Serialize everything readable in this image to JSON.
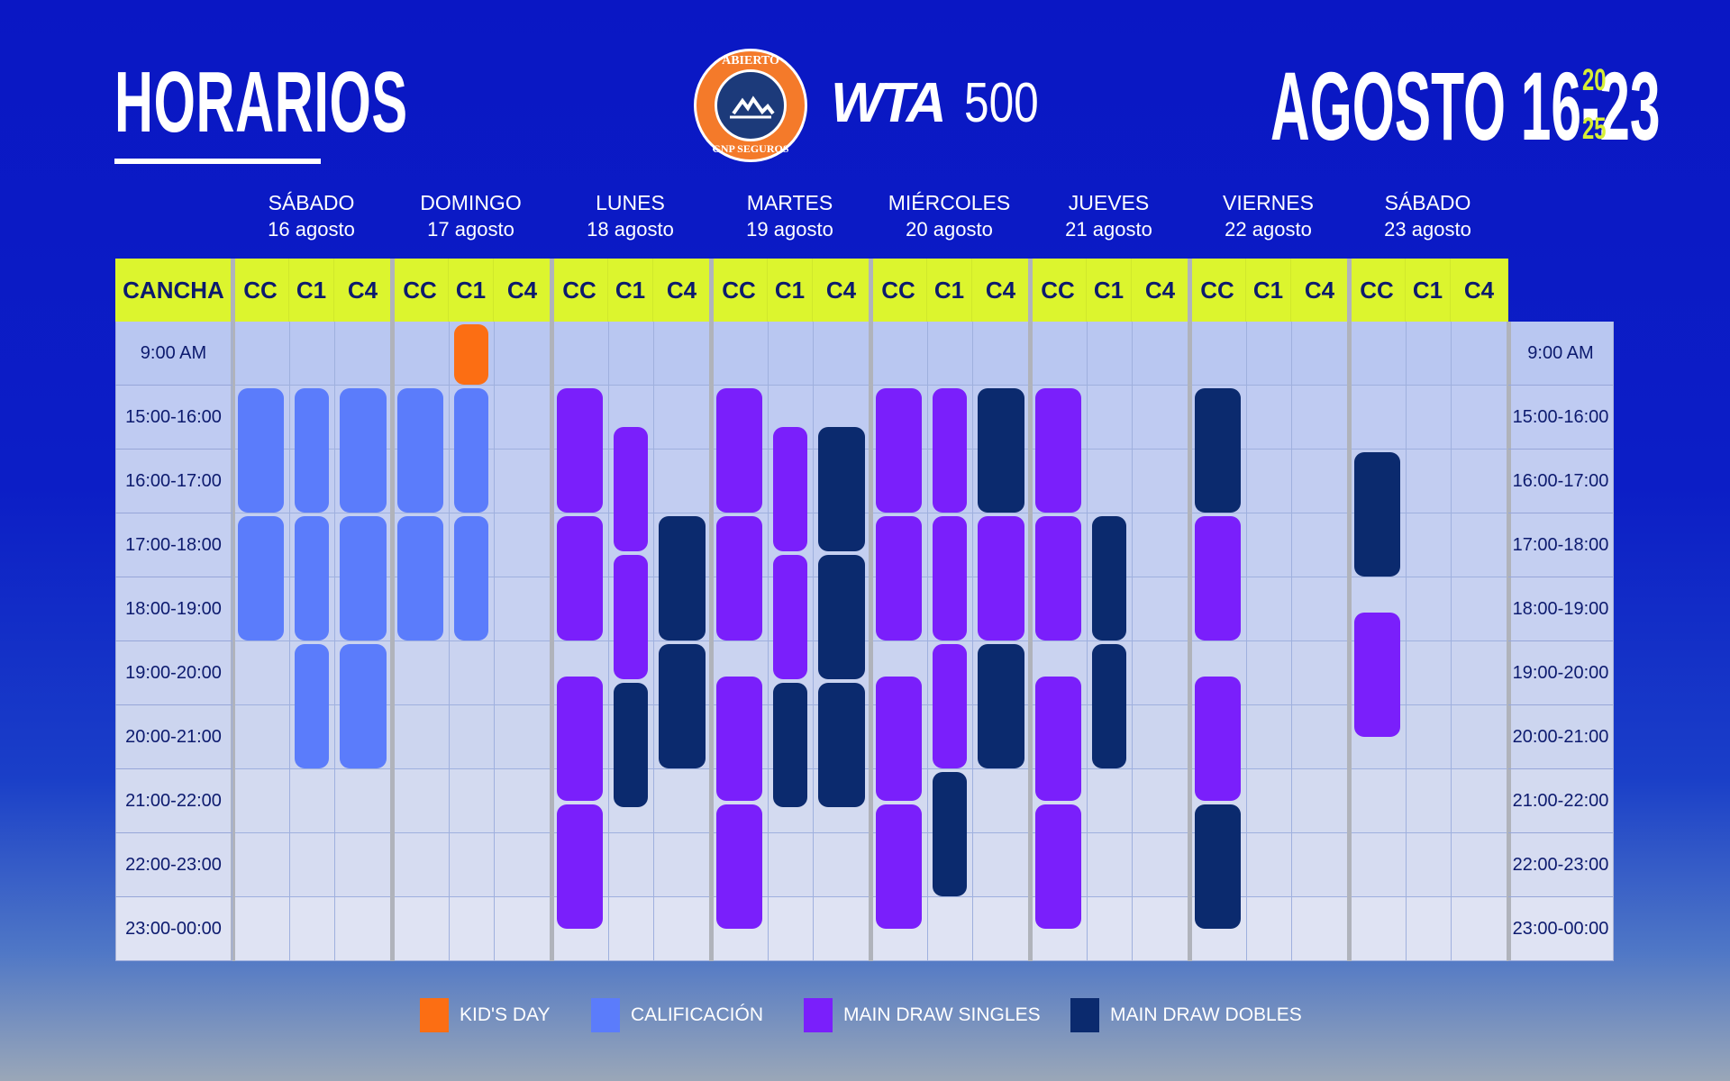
{
  "header": {
    "title": "HORARIOS",
    "logo_top": "ABIERTO",
    "logo_bottom": "GNP SEGUROS",
    "wta": "WTA",
    "tier": "500",
    "dates": "AGOSTO 16-23",
    "year_top": "20",
    "year_bottom": "25"
  },
  "court_label": "CANCHA",
  "courts": [
    "CC",
    "C1",
    "C4"
  ],
  "days": [
    {
      "name": "SÁBADO",
      "date": "16 agosto"
    },
    {
      "name": "DOMINGO",
      "date": "17 agosto"
    },
    {
      "name": "LUNES",
      "date": "18 agosto"
    },
    {
      "name": "MARTES",
      "date": "19 agosto"
    },
    {
      "name": "MIÉRCOLES",
      "date": "20 agosto"
    },
    {
      "name": "JUEVES",
      "date": "21 agosto"
    },
    {
      "name": "VIERNES",
      "date": "22 agosto"
    },
    {
      "name": "SÁBADO",
      "date": "23 agosto"
    }
  ],
  "times": [
    "9:00 AM",
    "15:00-16:00",
    "16:00-17:00",
    "17:00-18:00",
    "18:00-19:00",
    "19:00-20:00",
    "20:00-21:00",
    "21:00-22:00",
    "22:00-23:00",
    "23:00-00:00"
  ],
  "colors": {
    "kids": "#fc6e13",
    "calificacion": "#5b7cfb",
    "singles": "#7a1ffb",
    "dobles": "#0b2a6e",
    "header_bg": "#dcf52e"
  },
  "legend": [
    {
      "key": "kids",
      "label": "KID'S DAY"
    },
    {
      "key": "calificacion",
      "label": "CALIFICACIÓN"
    },
    {
      "key": "singles",
      "label": "MAIN DRAW SINGLES"
    },
    {
      "key": "dobles",
      "label": "MAIN DRAW DOBLES"
    }
  ],
  "schedule": [
    {
      "day": 0,
      "court": 0,
      "start": 1,
      "end": 3,
      "type": "calificacion"
    },
    {
      "day": 0,
      "court": 0,
      "start": 3,
      "end": 5,
      "type": "calificacion"
    },
    {
      "day": 0,
      "court": 1,
      "start": 1,
      "end": 3,
      "type": "calificacion"
    },
    {
      "day": 0,
      "court": 1,
      "start": 3,
      "end": 5,
      "type": "calificacion"
    },
    {
      "day": 0,
      "court": 1,
      "start": 5,
      "end": 7,
      "type": "calificacion"
    },
    {
      "day": 0,
      "court": 2,
      "start": 1,
      "end": 3,
      "type": "calificacion"
    },
    {
      "day": 0,
      "court": 2,
      "start": 3,
      "end": 5,
      "type": "calificacion"
    },
    {
      "day": 0,
      "court": 2,
      "start": 5,
      "end": 7,
      "type": "calificacion"
    },
    {
      "day": 1,
      "court": 1,
      "start": 0,
      "end": 1,
      "type": "kids"
    },
    {
      "day": 1,
      "court": 0,
      "start": 1,
      "end": 3,
      "type": "calificacion"
    },
    {
      "day": 1,
      "court": 0,
      "start": 3,
      "end": 5,
      "type": "calificacion"
    },
    {
      "day": 1,
      "court": 1,
      "start": 1,
      "end": 3,
      "type": "calificacion"
    },
    {
      "day": 1,
      "court": 1,
      "start": 3,
      "end": 5,
      "type": "calificacion"
    },
    {
      "day": 2,
      "court": 0,
      "start": 1,
      "end": 3,
      "type": "singles"
    },
    {
      "day": 2,
      "court": 0,
      "start": 3,
      "end": 5,
      "type": "singles"
    },
    {
      "day": 2,
      "court": 0,
      "start": 5.5,
      "end": 7.5,
      "type": "singles"
    },
    {
      "day": 2,
      "court": 0,
      "start": 7.5,
      "end": 9.5,
      "type": "singles"
    },
    {
      "day": 2,
      "court": 1,
      "start": 1.6,
      "end": 3.6,
      "type": "singles"
    },
    {
      "day": 2,
      "court": 1,
      "start": 3.6,
      "end": 5.6,
      "type": "singles"
    },
    {
      "day": 2,
      "court": 1,
      "start": 5.6,
      "end": 7.6,
      "type": "dobles"
    },
    {
      "day": 2,
      "court": 2,
      "start": 3,
      "end": 5,
      "type": "dobles"
    },
    {
      "day": 2,
      "court": 2,
      "start": 5,
      "end": 7,
      "type": "dobles"
    },
    {
      "day": 3,
      "court": 0,
      "start": 1,
      "end": 3,
      "type": "singles"
    },
    {
      "day": 3,
      "court": 0,
      "start": 3,
      "end": 5,
      "type": "singles"
    },
    {
      "day": 3,
      "court": 0,
      "start": 5.5,
      "end": 7.5,
      "type": "singles"
    },
    {
      "day": 3,
      "court": 0,
      "start": 7.5,
      "end": 9.5,
      "type": "singles"
    },
    {
      "day": 3,
      "court": 1,
      "start": 1.6,
      "end": 3.6,
      "type": "singles"
    },
    {
      "day": 3,
      "court": 1,
      "start": 3.6,
      "end": 5.6,
      "type": "singles"
    },
    {
      "day": 3,
      "court": 1,
      "start": 5.6,
      "end": 7.6,
      "type": "dobles"
    },
    {
      "day": 3,
      "court": 2,
      "start": 1.6,
      "end": 3.6,
      "type": "dobles"
    },
    {
      "day": 3,
      "court": 2,
      "start": 3.6,
      "end": 5.6,
      "type": "dobles"
    },
    {
      "day": 3,
      "court": 2,
      "start": 5.6,
      "end": 7.6,
      "type": "dobles"
    },
    {
      "day": 4,
      "court": 0,
      "start": 1,
      "end": 3,
      "type": "singles"
    },
    {
      "day": 4,
      "court": 0,
      "start": 3,
      "end": 5,
      "type": "singles"
    },
    {
      "day": 4,
      "court": 0,
      "start": 5.5,
      "end": 7.5,
      "type": "singles"
    },
    {
      "day": 4,
      "court": 0,
      "start": 7.5,
      "end": 9.5,
      "type": "singles"
    },
    {
      "day": 4,
      "court": 1,
      "start": 1,
      "end": 3,
      "type": "singles"
    },
    {
      "day": 4,
      "court": 1,
      "start": 3,
      "end": 5,
      "type": "singles"
    },
    {
      "day": 4,
      "court": 1,
      "start": 5,
      "end": 7,
      "type": "singles"
    },
    {
      "day": 4,
      "court": 1,
      "start": 7,
      "end": 9,
      "type": "dobles"
    },
    {
      "day": 4,
      "court": 2,
      "start": 1,
      "end": 3,
      "type": "dobles"
    },
    {
      "day": 4,
      "court": 2,
      "start": 3,
      "end": 5,
      "type": "singles"
    },
    {
      "day": 4,
      "court": 2,
      "start": 5,
      "end": 7,
      "type": "dobles"
    },
    {
      "day": 5,
      "court": 0,
      "start": 1,
      "end": 3,
      "type": "singles"
    },
    {
      "day": 5,
      "court": 0,
      "start": 3,
      "end": 5,
      "type": "singles"
    },
    {
      "day": 5,
      "court": 0,
      "start": 5.5,
      "end": 7.5,
      "type": "singles"
    },
    {
      "day": 5,
      "court": 0,
      "start": 7.5,
      "end": 9.5,
      "type": "singles"
    },
    {
      "day": 5,
      "court": 1,
      "start": 3,
      "end": 5,
      "type": "dobles"
    },
    {
      "day": 5,
      "court": 1,
      "start": 5,
      "end": 7,
      "type": "dobles"
    },
    {
      "day": 6,
      "court": 0,
      "start": 1,
      "end": 3,
      "type": "dobles"
    },
    {
      "day": 6,
      "court": 0,
      "start": 3,
      "end": 5,
      "type": "singles"
    },
    {
      "day": 6,
      "court": 0,
      "start": 5.5,
      "end": 7.5,
      "type": "singles"
    },
    {
      "day": 6,
      "court": 0,
      "start": 7.5,
      "end": 9.5,
      "type": "dobles"
    },
    {
      "day": 7,
      "court": 0,
      "start": 2,
      "end": 4,
      "type": "dobles"
    },
    {
      "day": 7,
      "court": 0,
      "start": 4.5,
      "end": 6.5,
      "type": "singles"
    }
  ]
}
